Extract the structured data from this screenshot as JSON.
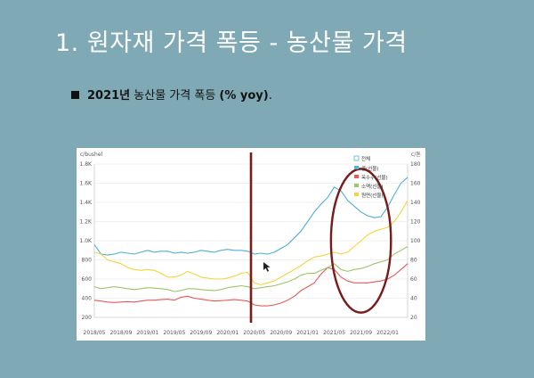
{
  "slide": {
    "title": "1. 원자재 가격 폭등 - 농산물 가격",
    "subtitle_year": "2021년",
    "subtitle_text": " 농산물 가격 폭등 ",
    "subtitle_unit": "(% yoy)",
    "subtitle_end": "."
  },
  "colors": {
    "background": "#7fa9b5",
    "composite": "#4fb0d8",
    "soybean": "#e35a5a",
    "wheat": "#9dc46a",
    "corn": "#f5d33c",
    "annotation": "#7a1a1a"
  },
  "chart_data": {
    "type": "line",
    "left_axis_unit": "c/bushel",
    "right_axis_unit": "c/톤",
    "left_ticks": [
      "1.8K",
      "1.6K",
      "1.4K",
      "1.2K",
      "1.0K",
      "800",
      "600",
      "400",
      "200"
    ],
    "left_tick_values": [
      1800,
      1600,
      1400,
      1200,
      1000,
      800,
      600,
      400,
      200
    ],
    "right_ticks": [
      "180",
      "160",
      "140",
      "120",
      "100",
      "80",
      "60",
      "40",
      "20"
    ],
    "right_tick_values": [
      180,
      160,
      140,
      120,
      100,
      80,
      60,
      40,
      20
    ],
    "ylim": [
      200,
      1800
    ],
    "x_tick_labels": [
      "2018/05",
      "2018/09",
      "2019/01",
      "2019/05",
      "2019/09",
      "2020/01",
      "2020/05",
      "2020/09",
      "2021/01",
      "2021/05",
      "2021/09",
      "2022/01"
    ],
    "x_count": 48,
    "legend": [
      "콩(선물)",
      "옥수수(선물)",
      "소맥(선물)",
      "원면(선물)"
    ],
    "legend_header": "전체",
    "series": [
      {
        "name": "콩(선물)",
        "color": "#4fb0d8",
        "axis": "left",
        "values": [
          960,
          860,
          850,
          860,
          880,
          870,
          860,
          880,
          900,
          880,
          890,
          890,
          870,
          880,
          870,
          880,
          900,
          890,
          880,
          900,
          910,
          900,
          900,
          890,
          860,
          870,
          860,
          880,
          920,
          960,
          1030,
          1100,
          1200,
          1300,
          1380,
          1450,
          1560,
          1520,
          1420,
          1360,
          1300,
          1260,
          1240,
          1250,
          1350,
          1480,
          1600,
          1660
        ]
      },
      {
        "name": "옥수수(선물)",
        "color": "#e35a5a",
        "axis": "left",
        "values": [
          380,
          370,
          360,
          355,
          360,
          365,
          360,
          370,
          380,
          380,
          385,
          390,
          380,
          410,
          420,
          400,
          390,
          380,
          370,
          375,
          380,
          385,
          380,
          370,
          330,
          320,
          320,
          330,
          350,
          380,
          420,
          480,
          520,
          560,
          650,
          720,
          700,
          620,
          580,
          560,
          560,
          560,
          570,
          580,
          600,
          640,
          700,
          760
        ]
      },
      {
        "name": "소맥(선물)",
        "color": "#9dc46a",
        "axis": "left",
        "values": [
          520,
          500,
          510,
          520,
          510,
          500,
          490,
          500,
          510,
          505,
          500,
          490,
          470,
          480,
          500,
          500,
          490,
          485,
          480,
          490,
          510,
          520,
          530,
          520,
          500,
          510,
          520,
          530,
          550,
          570,
          600,
          640,
          660,
          660,
          690,
          720,
          760,
          700,
          680,
          700,
          710,
          730,
          760,
          780,
          800,
          860,
          900,
          940
        ]
      },
      {
        "name": "원면(선물)",
        "color": "#f5d33c",
        "axis": "left",
        "values": [
          880,
          860,
          800,
          780,
          760,
          720,
          700,
          690,
          700,
          690,
          660,
          620,
          620,
          640,
          680,
          650,
          620,
          610,
          600,
          600,
          610,
          630,
          660,
          670,
          560,
          540,
          560,
          580,
          620,
          660,
          700,
          740,
          790,
          830,
          840,
          860,
          880,
          860,
          880,
          940,
          1000,
          1060,
          1100,
          1120,
          1140,
          1200,
          1300,
          1420
        ]
      }
    ],
    "annotations": [
      {
        "type": "vertical_line",
        "x_index": 23.5,
        "color": "#7a1a1a"
      },
      {
        "type": "ellipse",
        "x_from_index": 35.5,
        "x_to_index": 44.5,
        "y_from": 250,
        "y_to": 1750,
        "color": "#7a1a1a"
      }
    ],
    "grid": true,
    "legend_position": "top-right"
  }
}
